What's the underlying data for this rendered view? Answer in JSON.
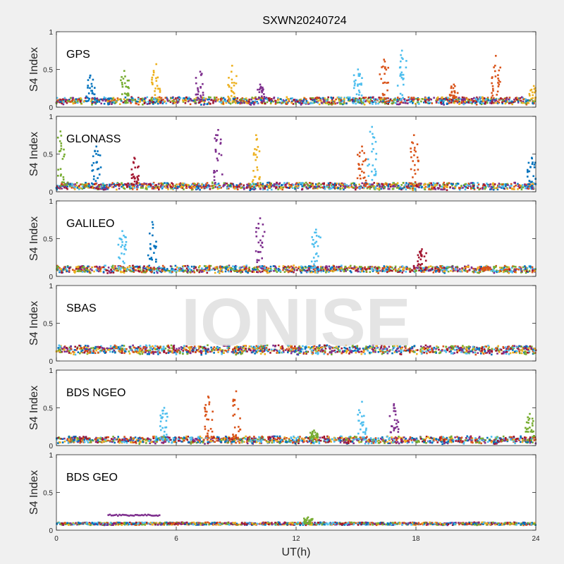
{
  "chart_data": {
    "type": "scatter",
    "title": "SXWN20240724",
    "xlabel": "UT(h)",
    "ylabel": "S4 Index",
    "xlim": [
      0,
      24
    ],
    "ylim": [
      0,
      1
    ],
    "xticks": [
      "0",
      "6",
      "12",
      "18",
      "24"
    ],
    "yticks": [
      "0",
      "0.5",
      "1"
    ],
    "watermark": "IONISE",
    "colors": [
      "#0072BD",
      "#D95319",
      "#EDB120",
      "#7E2F8E",
      "#77AC30",
      "#4DBEEE",
      "#A2142F"
    ],
    "panels": [
      {
        "name": "GPS",
        "baseline": 0.07,
        "noise": 0.04,
        "spikes": [
          {
            "x": 1.7,
            "y": 0.42,
            "series": 0
          },
          {
            "x": 3.4,
            "y": 0.48,
            "series": 4
          },
          {
            "x": 5.0,
            "y": 0.57,
            "series": 2
          },
          {
            "x": 7.2,
            "y": 0.47,
            "series": 3
          },
          {
            "x": 8.8,
            "y": 0.55,
            "series": 2
          },
          {
            "x": 10.2,
            "y": 0.3,
            "series": 3
          },
          {
            "x": 15.1,
            "y": 0.5,
            "series": 5
          },
          {
            "x": 16.4,
            "y": 0.63,
            "series": 1
          },
          {
            "x": 17.3,
            "y": 0.75,
            "series": 5
          },
          {
            "x": 19.9,
            "y": 0.3,
            "series": 1
          },
          {
            "x": 22.0,
            "y": 0.68,
            "series": 1
          },
          {
            "x": 23.9,
            "y": 0.28,
            "series": 2
          }
        ]
      },
      {
        "name": "GLONASS",
        "baseline": 0.06,
        "noise": 0.04,
        "spikes": [
          {
            "x": 0.2,
            "y": 0.8,
            "series": 4
          },
          {
            "x": 2.0,
            "y": 0.6,
            "series": 0
          },
          {
            "x": 3.9,
            "y": 0.45,
            "series": 6
          },
          {
            "x": 8.1,
            "y": 0.82,
            "series": 3
          },
          {
            "x": 10.0,
            "y": 0.75,
            "series": 2
          },
          {
            "x": 15.3,
            "y": 0.6,
            "series": 1
          },
          {
            "x": 15.8,
            "y": 0.86,
            "series": 5
          },
          {
            "x": 17.9,
            "y": 0.75,
            "series": 1
          },
          {
            "x": 23.8,
            "y": 0.45,
            "series": 0
          }
        ]
      },
      {
        "name": "GALILEO",
        "baseline": 0.08,
        "noise": 0.04,
        "spikes": [
          {
            "x": 3.3,
            "y": 0.6,
            "series": 5
          },
          {
            "x": 4.8,
            "y": 0.72,
            "series": 0
          },
          {
            "x": 10.2,
            "y": 0.77,
            "series": 3
          },
          {
            "x": 13.0,
            "y": 0.62,
            "series": 5
          },
          {
            "x": 18.3,
            "y": 0.36,
            "series": 6
          },
          {
            "x": 21.5,
            "y": 0.12,
            "series": 1
          }
        ]
      },
      {
        "name": "SBAS",
        "baseline": 0.13,
        "noise": 0.05,
        "spikes": []
      },
      {
        "name": "BDS NGEO",
        "baseline": 0.06,
        "noise": 0.04,
        "spikes": [
          {
            "x": 5.4,
            "y": 0.5,
            "series": 5
          },
          {
            "x": 7.6,
            "y": 0.65,
            "series": 1
          },
          {
            "x": 9.0,
            "y": 0.72,
            "series": 1
          },
          {
            "x": 12.9,
            "y": 0.2,
            "series": 4
          },
          {
            "x": 15.3,
            "y": 0.58,
            "series": 5
          },
          {
            "x": 16.9,
            "y": 0.55,
            "series": 3
          },
          {
            "x": 23.7,
            "y": 0.42,
            "series": 4
          }
        ]
      },
      {
        "name": "BDS GEO",
        "baseline": 0.08,
        "noise": 0.015,
        "spikes": [
          {
            "x": 12.6,
            "y": 0.17,
            "series": 4
          }
        ],
        "segments": [
          {
            "x0": 2.6,
            "x1": 5.2,
            "y": 0.2,
            "series": 3
          }
        ]
      }
    ]
  }
}
